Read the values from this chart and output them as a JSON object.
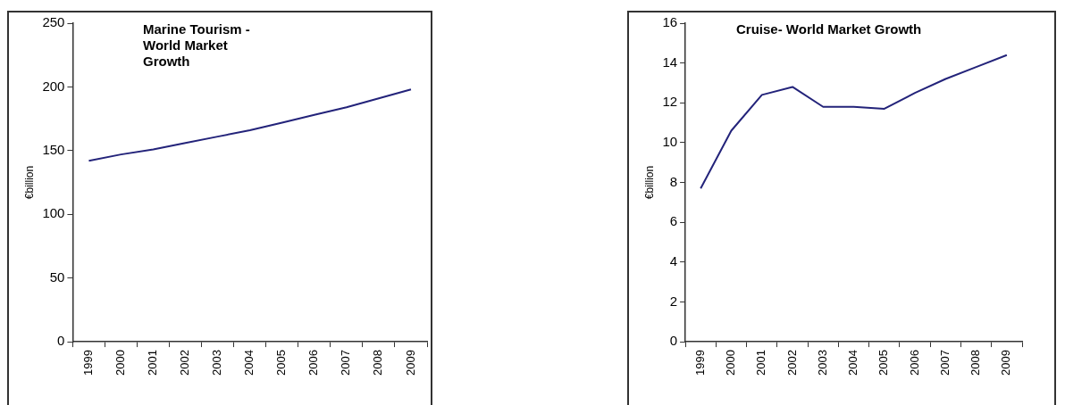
{
  "chart_data": [
    {
      "type": "line",
      "title": "Marine Tourism -World Market Growth",
      "ylabel": "€billion",
      "categories": [
        "1999",
        "2000",
        "2001",
        "2002",
        "2003",
        "2004",
        "2005",
        "2006",
        "2007",
        "2008",
        "2009"
      ],
      "series": [
        {
          "color": "#23237a",
          "values": [
            142,
            147,
            151,
            156,
            161,
            166,
            172,
            178,
            184,
            191,
            198
          ]
        }
      ],
      "ylim": [
        0,
        250
      ],
      "yticks": [
        0,
        50,
        100,
        150,
        200,
        250
      ],
      "grid": false,
      "legend": false,
      "marker": "none",
      "line_style": "solid"
    },
    {
      "type": "line",
      "title": "Cruise- World Market Growth",
      "ylabel": "€billion",
      "categories": [
        "1999",
        "2000",
        "2001",
        "2002",
        "2003",
        "2004",
        "2005",
        "2006",
        "2007",
        "2008",
        "2009"
      ],
      "series": [
        {
          "color": "#23237a",
          "values": [
            7.7,
            10.6,
            12.4,
            12.8,
            11.8,
            11.8,
            11.7,
            12.5,
            13.2,
            13.8,
            14.4
          ]
        }
      ],
      "ylim": [
        0,
        16
      ],
      "yticks": [
        0,
        2,
        4,
        6,
        8,
        10,
        12,
        14,
        16
      ],
      "grid": false,
      "legend": false,
      "marker": "none",
      "line_style": "solid"
    }
  ]
}
